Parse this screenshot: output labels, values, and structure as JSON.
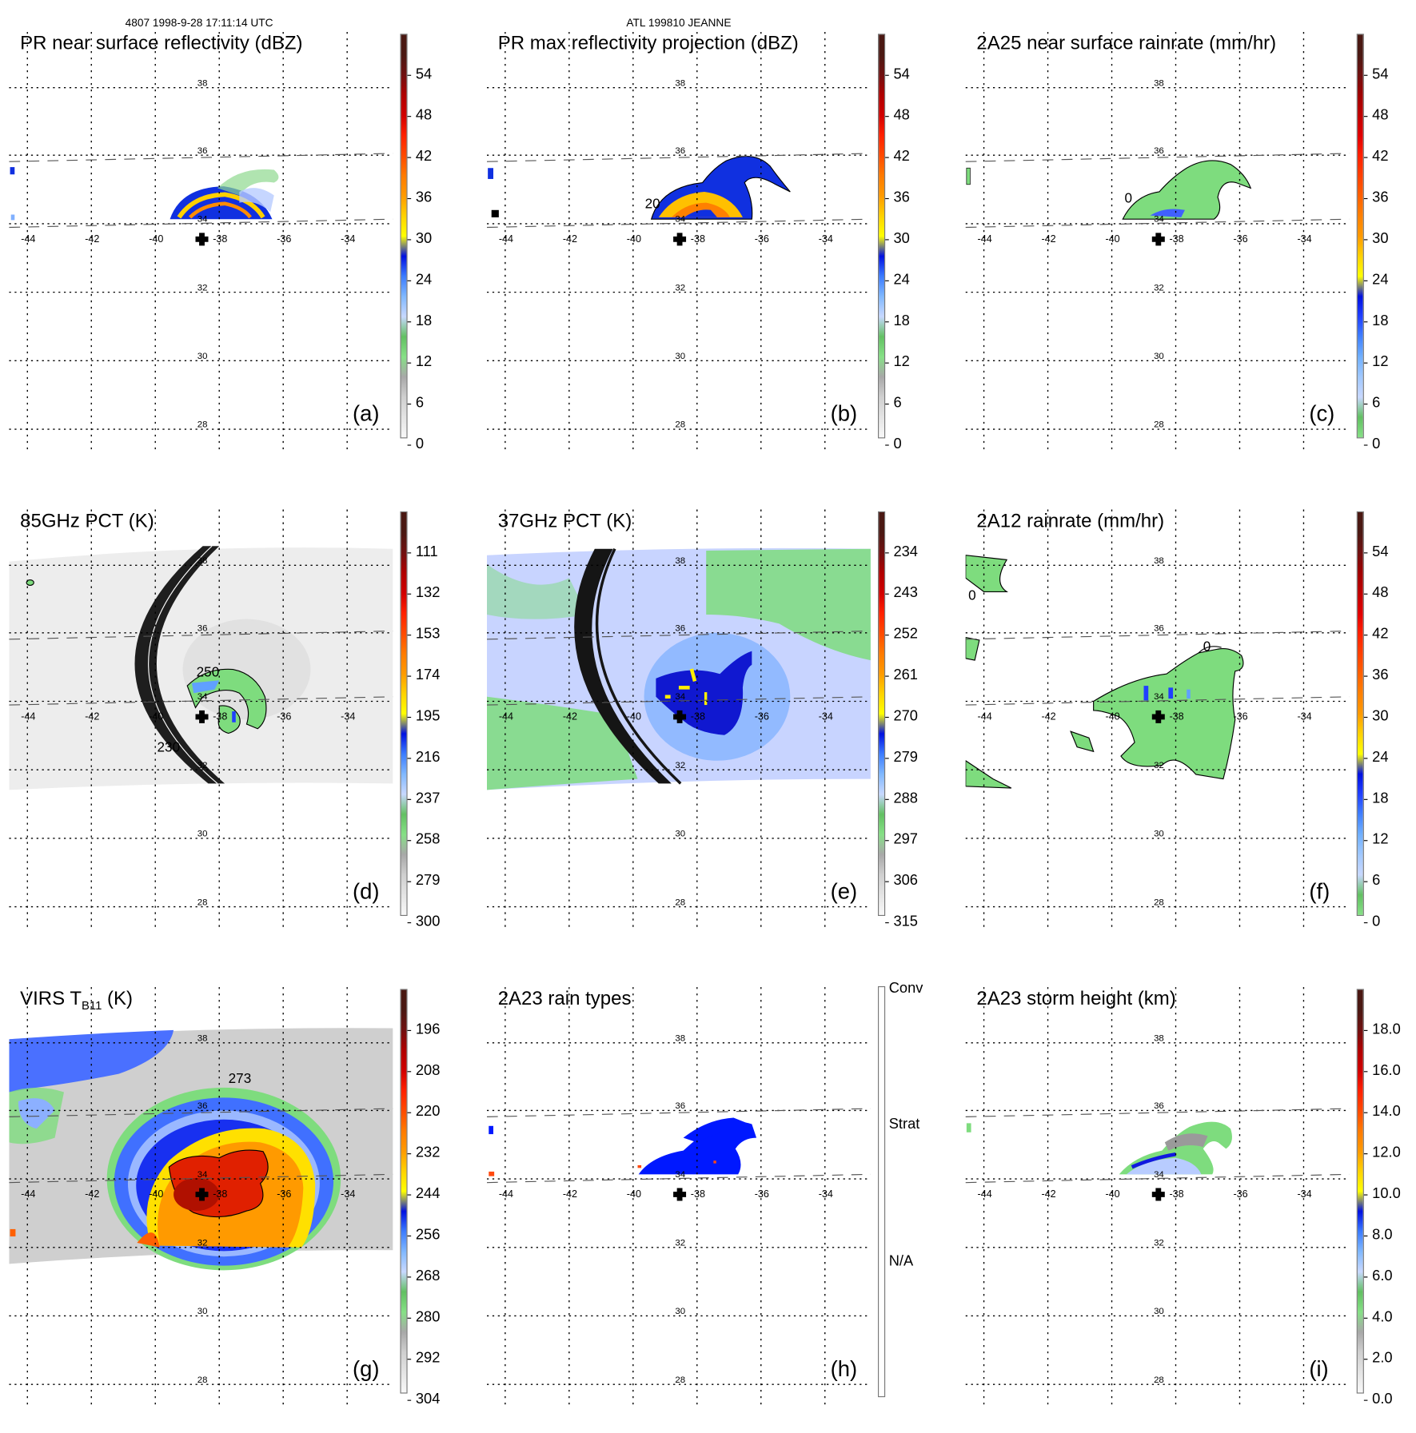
{
  "header": {
    "orbit_time": "4807 1998-9-28 17:11:14 UTC",
    "storm": "ATL 199810 JEANNE"
  },
  "axes": {
    "lat_labels": [
      "38",
      "36",
      "34",
      "32",
      "30",
      "28"
    ],
    "lon_labels": [
      "-44",
      "-42",
      "-40",
      "-38",
      "-36",
      "-34"
    ]
  },
  "palettes": {
    "dbz": [
      "#f8f8f8",
      "#e4e4e4",
      "#cfcfcf",
      "#a8a8a8",
      "#86e086",
      "#62c062",
      "#c8d8ff",
      "#80b8ff",
      "#3c7cff",
      "#0010e0",
      "#ffff00",
      "#ffd200",
      "#ff9a00",
      "#ff7a00",
      "#ff4a00",
      "#ff2000",
      "#d00000",
      "#b00000",
      "#701010",
      "#4a1812"
    ],
    "rain": [
      "#86e086",
      "#62c062",
      "#c8d8ff",
      "#a0c8ff",
      "#70b0ff",
      "#4080ff",
      "#2040ff",
      "#0010e0",
      "#ffff00",
      "#ffd200",
      "#ff9a00",
      "#ff8000",
      "#ff6000",
      "#ff4000",
      "#ff2000",
      "#e00000",
      "#c00000",
      "#a00000",
      "#701010",
      "#4a1812"
    ],
    "types": [
      "#ffffff",
      "#0018ff",
      "#ff4a10"
    ]
  },
  "panels": [
    {
      "id": "a",
      "title": "PR near surface reflectivity (dBZ)",
      "letter": "(a)",
      "palette": "dbz",
      "labels": [
        "54",
        "48",
        "42",
        "36",
        "30",
        "24",
        "18",
        "12",
        "6",
        "0"
      ]
    },
    {
      "id": "b",
      "title": "PR max reflectivity projection (dBZ)",
      "letter": "(b)",
      "palette": "dbz",
      "labels": [
        "54",
        "48",
        "42",
        "36",
        "30",
        "24",
        "18",
        "12",
        "6",
        "0"
      ],
      "contour_labels": [
        "20"
      ]
    },
    {
      "id": "c",
      "title": "2A25 near surface rainrate (mm/hr)",
      "letter": "(c)",
      "palette": "rain",
      "labels": [
        "54",
        "48",
        "42",
        "36",
        "30",
        "24",
        "18",
        "12",
        "6",
        "0"
      ],
      "contour_labels": [
        "0"
      ]
    },
    {
      "id": "d",
      "title": "85GHz PCT (K)",
      "letter": "(d)",
      "palette": "dbz",
      "labels": [
        "111",
        "132",
        "153",
        "174",
        "195",
        "216",
        "237",
        "258",
        "279",
        "300"
      ],
      "contour_labels": [
        "250",
        "230"
      ]
    },
    {
      "id": "e",
      "title": "37GHz PCT (K)",
      "letter": "(e)",
      "palette": "dbz",
      "labels": [
        "234",
        "243",
        "252",
        "261",
        "270",
        "279",
        "288",
        "297",
        "306",
        "315"
      ]
    },
    {
      "id": "f",
      "title": "2A12 rainrate (mm/hr)",
      "letter": "(f)",
      "palette": "rain",
      "labels": [
        "54",
        "48",
        "42",
        "36",
        "30",
        "24",
        "18",
        "12",
        "6",
        "0"
      ],
      "contour_labels": [
        "0",
        "0"
      ]
    },
    {
      "id": "g",
      "title": "VIRS T",
      "title_sub": "B11",
      "title_suffix": " (K)",
      "letter": "(g)",
      "palette": "dbz",
      "labels": [
        "196",
        "208",
        "220",
        "232",
        "244",
        "256",
        "268",
        "280",
        "292",
        "304"
      ],
      "contour_labels": [
        "273"
      ]
    },
    {
      "id": "h",
      "title": "2A23 rain types",
      "letter": "(h)",
      "palette": "types",
      "labels": [
        "Conv",
        "Strat",
        "N/A"
      ]
    },
    {
      "id": "i",
      "title": "2A23 storm height (km)",
      "letter": "(i)",
      "palette": "dbz",
      "labels": [
        "18.0",
        "16.0",
        "14.0",
        "12.0",
        "10.0",
        "8.0",
        "6.0",
        "4.0",
        "2.0",
        "0.0"
      ]
    }
  ]
}
